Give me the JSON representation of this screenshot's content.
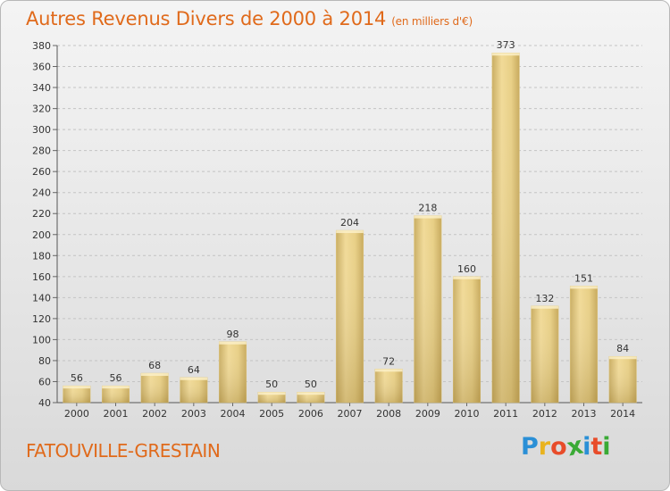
{
  "header": {
    "title": "Autres Revenus Divers de 2000 à 2014",
    "subtitle": "(en milliers d'€)"
  },
  "footer": {
    "place": "FATOUVILLE-GRESTAIN",
    "logo_letters": [
      "P",
      "r",
      "o",
      "x",
      "i",
      "t",
      "i"
    ],
    "logo_colors": [
      "#2a8fd6",
      "#e9b31e",
      "#e84c2a",
      "#3aaa35",
      "#2a8fd6",
      "#e84c2a",
      "#3aaa35"
    ]
  },
  "chart_data": {
    "type": "bar",
    "title": "Autres Revenus Divers de 2000 à 2014",
    "subtitle": "(en milliers d'€)",
    "categories": [
      "2000",
      "2001",
      "2002",
      "2003",
      "2004",
      "2005",
      "2006",
      "2007",
      "2008",
      "2009",
      "2010",
      "2011",
      "2012",
      "2013",
      "2014"
    ],
    "values": [
      56,
      56,
      68,
      64,
      98,
      50,
      50,
      204,
      72,
      218,
      160,
      373,
      132,
      151,
      84
    ],
    "ylim": [
      40,
      380
    ],
    "yticks": [
      40,
      60,
      80,
      100,
      120,
      140,
      160,
      180,
      200,
      220,
      240,
      260,
      280,
      300,
      320,
      340,
      360,
      380
    ],
    "grid": true,
    "bar_color": "#e9cf86"
  }
}
